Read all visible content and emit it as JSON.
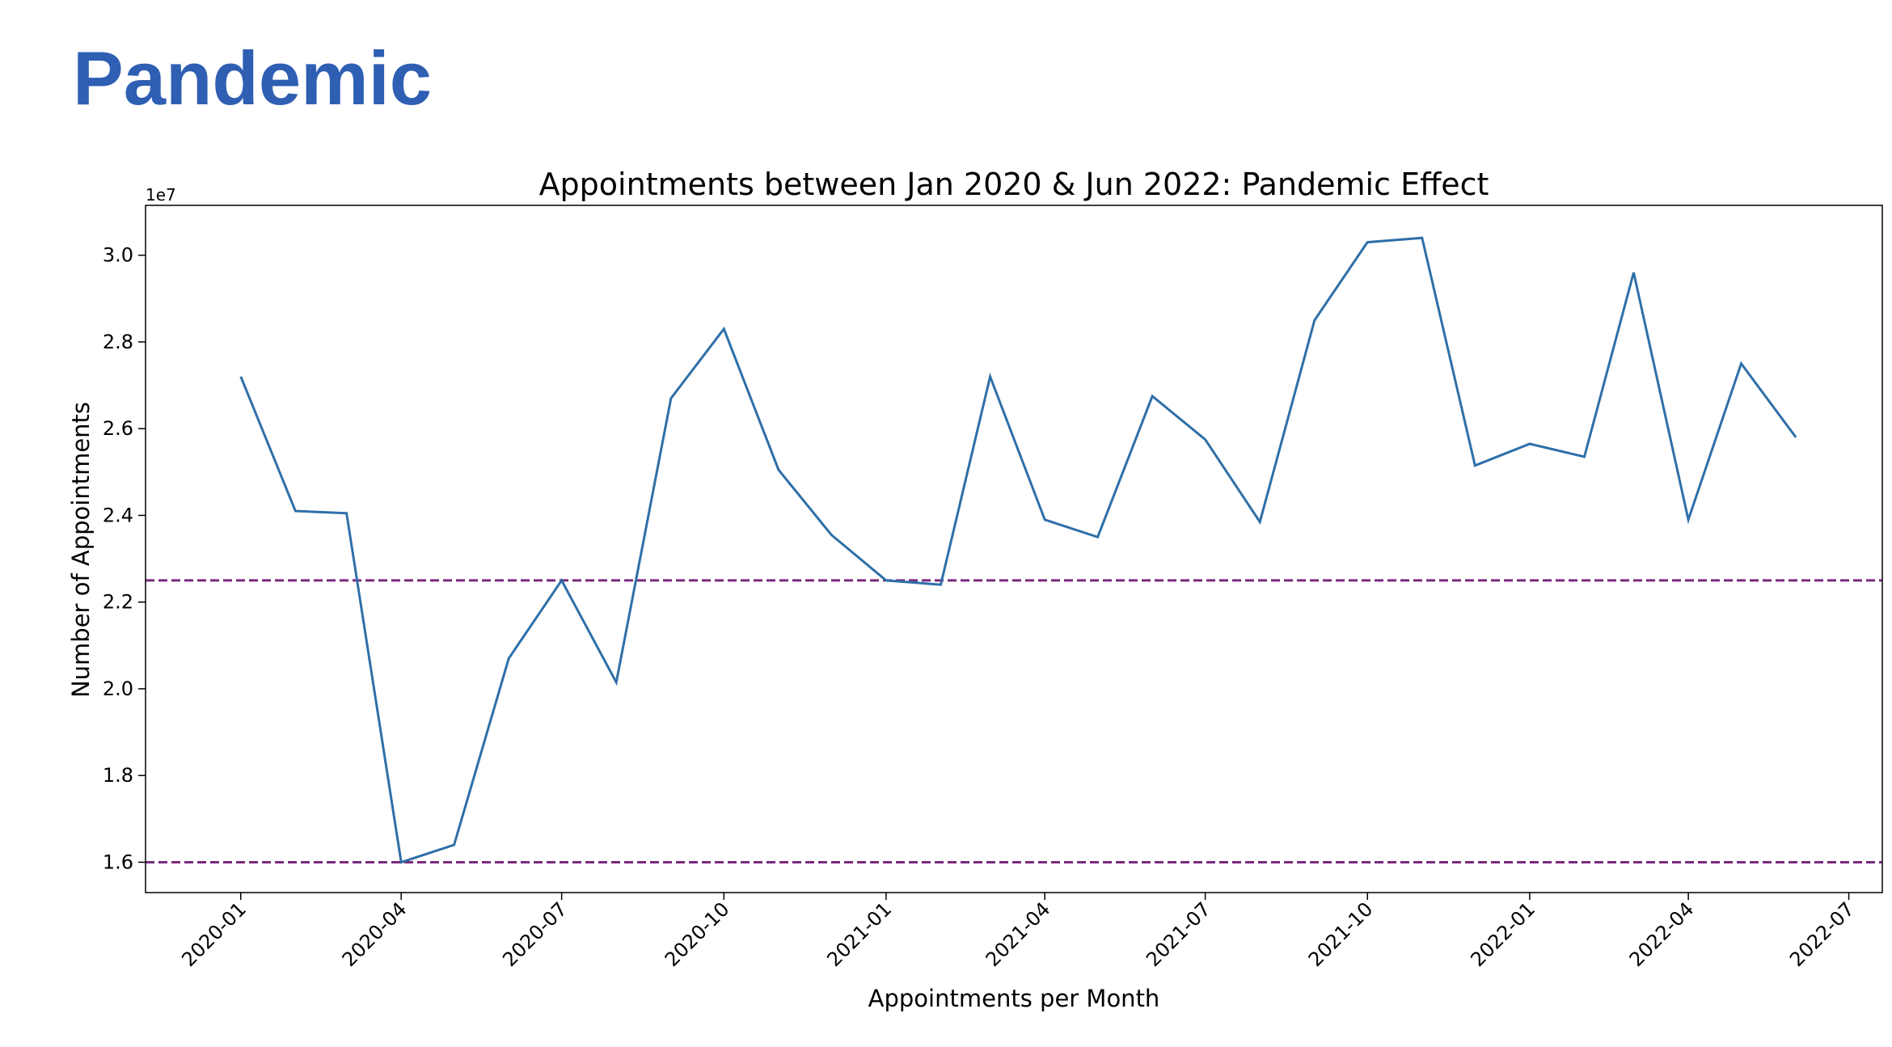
{
  "page": {
    "heading": "Pandemic",
    "heading_color": "#2f5fb3"
  },
  "chart_data": {
    "type": "line",
    "title": "Appointments between Jan 2020 & Jun 2022: Pandemic Effect",
    "xlabel": "Appointments per Month",
    "ylabel": "Number of Appointments",
    "y_offset_label": "1e7",
    "grid": false,
    "xlim": [
      "2019-11-08",
      "2022-07-20"
    ],
    "ylim": [
      15300000,
      31150000
    ],
    "x_ticks": [
      "2020-01",
      "2020-04",
      "2020-07",
      "2020-10",
      "2021-01",
      "2021-04",
      "2021-07",
      "2021-10",
      "2022-01",
      "2022-04",
      "2022-07"
    ],
    "y_ticks": [
      1.6,
      1.8,
      2.0,
      2.2,
      2.4,
      2.6,
      2.8,
      3.0
    ],
    "x": [
      "2020-01-01",
      "2020-02-01",
      "2020-03-01",
      "2020-04-01",
      "2020-05-01",
      "2020-06-01",
      "2020-07-01",
      "2020-08-01",
      "2020-09-01",
      "2020-10-01",
      "2020-11-01",
      "2020-12-01",
      "2021-01-01",
      "2021-02-01",
      "2021-03-01",
      "2021-04-01",
      "2021-05-01",
      "2021-06-01",
      "2021-07-01",
      "2021-08-01",
      "2021-09-01",
      "2021-10-01",
      "2021-11-01",
      "2021-12-01",
      "2022-01-01",
      "2022-02-01",
      "2022-03-01",
      "2022-04-01",
      "2022-05-01",
      "2022-06-01"
    ],
    "series": [
      {
        "color": "#2e6fa8",
        "values": [
          27200000,
          24100000,
          24050000,
          16000000,
          16400000,
          20700000,
          22500000,
          20150000,
          26700000,
          28300000,
          25050000,
          23550000,
          22500000,
          22400000,
          27200000,
          23900000,
          23500000,
          26750000,
          25750000,
          23850000,
          28500000,
          30300000,
          30400000,
          25150000,
          25650000,
          25350000,
          29600000,
          23900000,
          27500000,
          25800000
        ]
      }
    ],
    "reference_lines": [
      {
        "y": 22500000,
        "style": "dashed",
        "color": "#7b2a7e"
      },
      {
        "y": 16000000,
        "style": "dashed",
        "color": "#7b2a7e"
      }
    ]
  }
}
